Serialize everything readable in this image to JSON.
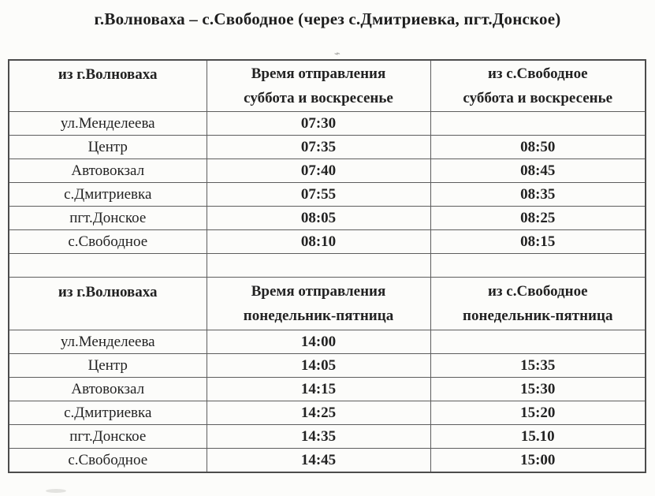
{
  "title": "г.Волноваха – с.Свободное (через с.Дмитриевка, пгт.Донское)",
  "artifact_glyph": "⌁",
  "sections": [
    {
      "headers": {
        "from_city": "из г.Волноваха",
        "depart_line1": "Время отправления",
        "depart_line2": "суббота и воскресенье",
        "return_line1": "из с.Свободное",
        "return_line2": "суббота и воскресенье"
      },
      "rows": [
        {
          "stop": "ул.Менделеева",
          "depart": "07:30",
          "return": ""
        },
        {
          "stop": "Центр",
          "depart": "07:35",
          "return": "08:50"
        },
        {
          "stop": "Автовокзал",
          "depart": "07:40",
          "return": "08:45"
        },
        {
          "stop": "с.Дмитриевка",
          "depart": "07:55",
          "return": "08:35"
        },
        {
          "stop": "пгт.Донское",
          "depart": "08:05",
          "return": "08:25"
        },
        {
          "stop": "с.Свободное",
          "depart": "08:10",
          "return": "08:15"
        }
      ]
    },
    {
      "headers": {
        "from_city": "из г.Волноваха",
        "depart_line1": "Время отправления",
        "depart_line2": "понедельник-пятница",
        "return_line1": "из с.Свободное",
        "return_line2": "понедельник-пятница"
      },
      "rows": [
        {
          "stop": "ул.Менделеева",
          "depart": "14:00",
          "return": ""
        },
        {
          "stop": "Центр",
          "depart": "14:05",
          "return": "15:35"
        },
        {
          "stop": "Автовокзал",
          "depart": "14:15",
          "return": "15:30"
        },
        {
          "stop": "с.Дмитриевка",
          "depart": "14:25",
          "return": "15:20"
        },
        {
          "stop": "пгт.Донское",
          "depart": "14:35",
          "return": "15.10"
        },
        {
          "stop": "с.Свободное",
          "depart": "14:45",
          "return": "15:00"
        }
      ]
    }
  ]
}
